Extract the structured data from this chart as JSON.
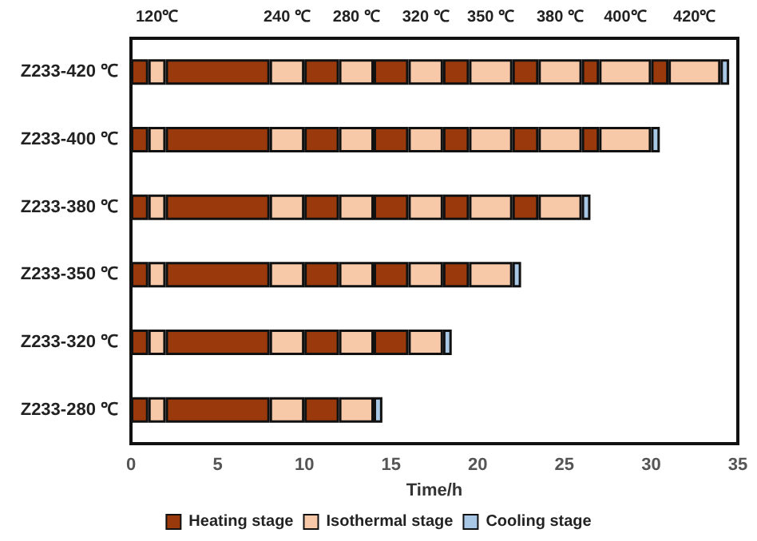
{
  "chart_data": {
    "type": "bar",
    "orientation": "horizontal",
    "stacked": true,
    "xlabel": "Time/h",
    "categories": [
      "Z233-420 ℃",
      "Z233-400 ℃",
      "Z233-380 ℃",
      "Z233-350 ℃",
      "Z233-320 ℃",
      "Z233-280 ℃"
    ],
    "xlim": [
      0,
      35
    ],
    "xticks": [
      0,
      5,
      10,
      15,
      20,
      25,
      30,
      35
    ],
    "grid": false,
    "legend": "bottom",
    "annotations": [
      "120℃",
      "240 ℃",
      "280 ℃",
      "320 ℃",
      "350 ℃",
      "380 ℃",
      "400℃",
      "420℃"
    ],
    "series": [
      {
        "name": "Heating stage",
        "color": "#9a3a0c",
        "values": [
          1,
          1,
          1,
          1,
          1,
          1
        ]
      },
      {
        "name": "Isothermal stage",
        "color": "#f7c9a9",
        "values": [
          1,
          1,
          1,
          1,
          1,
          1
        ]
      },
      {
        "color": "#9a3a0c",
        "values": [
          6,
          6,
          6,
          6,
          6,
          6
        ]
      },
      {
        "color": "#f7c9a9",
        "values": [
          2,
          2,
          2,
          2,
          2,
          2
        ]
      },
      {
        "color": "#9a3a0c",
        "values": [
          2,
          2,
          2,
          2,
          2,
          2
        ]
      },
      {
        "color": "#f7c9a9",
        "values": [
          2,
          2,
          2,
          2,
          2,
          2
        ]
      },
      {
        "name": "Cooling stage",
        "color": "#a9c8e6",
        "values": [
          null,
          null,
          null,
          null,
          null,
          0.5
        ]
      },
      {
        "color": "#9a3a0c",
        "values": [
          2,
          2,
          2,
          2,
          2,
          null
        ]
      },
      {
        "color": "#f7c9a9",
        "values": [
          2,
          2,
          2,
          2,
          2,
          null
        ]
      },
      {
        "color": "#a9c8e6",
        "values": [
          null,
          null,
          null,
          null,
          0.5,
          null
        ]
      },
      {
        "color": "#9a3a0c",
        "values": [
          1.5,
          1.5,
          1.5,
          1.5,
          null,
          null
        ]
      },
      {
        "color": "#f7c9a9",
        "values": [
          2.5,
          2.5,
          2.5,
          2.5,
          null,
          null
        ]
      },
      {
        "color": "#a9c8e6",
        "values": [
          null,
          null,
          null,
          0.5,
          null,
          null
        ]
      },
      {
        "color": "#9a3a0c",
        "values": [
          1.5,
          1.5,
          1.5,
          null,
          null,
          null
        ]
      },
      {
        "color": "#f7c9a9",
        "values": [
          2.5,
          2.5,
          2.5,
          null,
          null,
          null
        ]
      },
      {
        "color": "#a9c8e6",
        "values": [
          null,
          null,
          0.5,
          null,
          null,
          null
        ]
      },
      {
        "color": "#9a3a0c",
        "values": [
          1,
          1,
          null,
          null,
          null,
          null
        ]
      },
      {
        "color": "#f7c9a9",
        "values": [
          3,
          3,
          null,
          null,
          null,
          null
        ]
      },
      {
        "color": "#a9c8e6",
        "values": [
          null,
          0.5,
          null,
          null,
          null,
          null
        ]
      },
      {
        "color": "#9a3a0c",
        "values": [
          1,
          null,
          null,
          null,
          null,
          null
        ]
      },
      {
        "color": "#f7c9a9",
        "values": [
          3,
          null,
          null,
          null,
          null,
          null
        ]
      },
      {
        "color": "#a9c8e6",
        "values": [
          0.5,
          null,
          null,
          null,
          null,
          null
        ]
      }
    ]
  }
}
